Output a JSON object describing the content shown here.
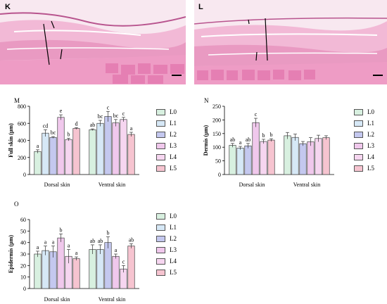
{
  "panels": {
    "K": {
      "label": "K"
    },
    "L": {
      "label": "L"
    }
  },
  "legend": [
    "L0",
    "L1",
    "L2",
    "L3",
    "L4",
    "L5"
  ],
  "colors": {
    "L0": "#d8f0e0",
    "L1": "#d6e8f6",
    "L2": "#c4c8ef",
    "L3": "#f0c8ec",
    "L4": "#f6d6f0",
    "L5": "#f6c4d0",
    "histology_pink": "#e99ac2",
    "histology_bg": "#f8e8f0"
  },
  "chart_data": [
    {
      "panel": "M",
      "type": "bar",
      "ylabel": "Full skin (μm)",
      "categories": [
        "Dorsal skin",
        "Ventral skin"
      ],
      "ylim": [
        0,
        800
      ],
      "yticks": [
        0,
        200,
        400,
        600,
        800
      ],
      "series": [
        {
          "name": "L0",
          "values": [
            270,
            525
          ],
          "errors": [
            20,
            10
          ],
          "letters": [
            "a",
            "ab"
          ]
        },
        {
          "name": "L1",
          "values": [
            485,
            600
          ],
          "errors": [
            40,
            35
          ],
          "letters": [
            "cd",
            "bc"
          ]
        },
        {
          "name": "L2",
          "values": [
            435,
            680
          ],
          "errors": [
            10,
            60
          ],
          "letters": [
            "bc",
            "c"
          ]
        },
        {
          "name": "L3",
          "values": [
            670,
            605
          ],
          "errors": [
            30,
            40
          ],
          "letters": [
            "e",
            "bc"
          ]
        },
        {
          "name": "L4",
          "values": [
            410,
            645
          ],
          "errors": [
            15,
            25
          ],
          "letters": [
            "b",
            "c"
          ]
        },
        {
          "name": "L5",
          "values": [
            540,
            470
          ],
          "errors": [
            10,
            25
          ],
          "letters": [
            "d",
            "a"
          ]
        }
      ]
    },
    {
      "panel": "N",
      "type": "bar",
      "ylabel": "Dermis (μm)",
      "categories": [
        "Dorsal skin",
        "Ventral skin"
      ],
      "ylim": [
        0,
        250
      ],
      "yticks": [
        0,
        50,
        100,
        150,
        200,
        250
      ],
      "series": [
        {
          "name": "L0",
          "values": [
            107,
            142
          ],
          "errors": [
            7,
            12
          ],
          "letters": [
            "ab",
            ""
          ]
        },
        {
          "name": "L1",
          "values": [
            97,
            136
          ],
          "errors": [
            6,
            12
          ],
          "letters": [
            "a",
            ""
          ]
        },
        {
          "name": "L2",
          "values": [
            105,
            113
          ],
          "errors": [
            9,
            8
          ],
          "letters": [
            "ab",
            ""
          ]
        },
        {
          "name": "L3",
          "values": [
            190,
            120
          ],
          "errors": [
            16,
            15
          ],
          "letters": [
            "c",
            ""
          ]
        },
        {
          "name": "L4",
          "values": [
            121,
            132
          ],
          "errors": [
            8,
            12
          ],
          "letters": [
            "b",
            ""
          ]
        },
        {
          "name": "L5",
          "values": [
            126,
            135
          ],
          "errors": [
            5,
            7
          ],
          "letters": [
            "b",
            ""
          ]
        }
      ]
    },
    {
      "panel": "O",
      "type": "bar",
      "ylabel": "Epidermis (μm)",
      "categories": [
        "Dorsal skin",
        "Ventral skin"
      ],
      "ylim": [
        0,
        60
      ],
      "yticks": [
        0,
        10,
        20,
        30,
        40,
        50,
        60
      ],
      "series": [
        {
          "name": "L0",
          "values": [
            30,
            34
          ],
          "errors": [
            2.5,
            4
          ],
          "letters": [
            "a",
            "ab"
          ]
        },
        {
          "name": "L1",
          "values": [
            33,
            34
          ],
          "errors": [
            4,
            4
          ],
          "letters": [
            "a",
            "ab"
          ]
        },
        {
          "name": "L2",
          "values": [
            32,
            40
          ],
          "errors": [
            5,
            5
          ],
          "letters": [
            "a",
            "b"
          ]
        },
        {
          "name": "L3",
          "values": [
            44,
            28
          ],
          "errors": [
            3.5,
            2
          ],
          "letters": [
            "b",
            "a"
          ]
        },
        {
          "name": "L4",
          "values": [
            28,
            17
          ],
          "errors": [
            6,
            3
          ],
          "letters": [
            "a",
            "c"
          ]
        },
        {
          "name": "L5",
          "values": [
            26,
            37
          ],
          "errors": [
            1.5,
            2
          ],
          "letters": [
            "a",
            "ab"
          ]
        }
      ]
    }
  ]
}
